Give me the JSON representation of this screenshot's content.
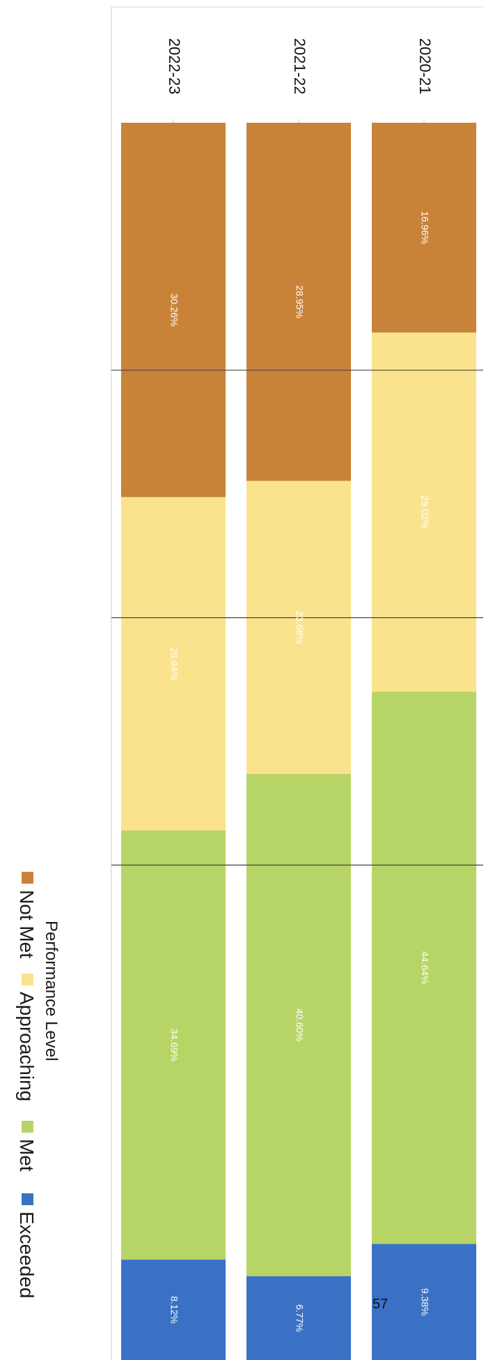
{
  "chart_data": {
    "type": "bar",
    "orientation": "stacked-100-percent",
    "categories": [
      "2020-21",
      "2021-22",
      "2022-23"
    ],
    "series": [
      {
        "name": "Not Met",
        "values": [
          16.96,
          28.95,
          30.26
        ],
        "labels": [
          "16.96%",
          "28.95%",
          "30.26%"
        ],
        "color": "#C98339"
      },
      {
        "name": "Approaching",
        "values": [
          29.02,
          23.68,
          26.94
        ],
        "labels": [
          "29.02%",
          "23.68%",
          "26.94%"
        ],
        "color": "#FBE38E"
      },
      {
        "name": "Met",
        "values": [
          44.64,
          40.6,
          34.69
        ],
        "labels": [
          "44.64%",
          "40.60%",
          "34.69%"
        ],
        "color": "#B7D566"
      },
      {
        "name": "Exceeded",
        "values": [
          9.38,
          6.77,
          8.12
        ],
        "labels": [
          "9.38%",
          "6.77%",
          "8.12%"
        ],
        "color": "#3A71C4"
      }
    ],
    "legend": {
      "title": "Performance Level",
      "placement": "left"
    },
    "grid": true,
    "ylim": [
      0,
      100
    ]
  },
  "page_number": "57"
}
